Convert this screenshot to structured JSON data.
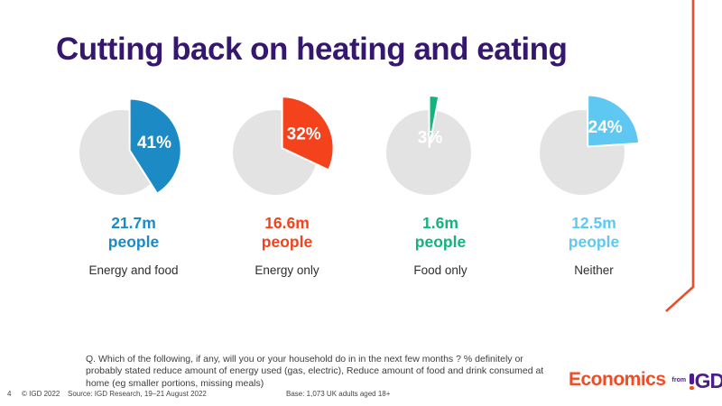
{
  "slide": {
    "title": "Cutting back on heating and eating",
    "footnote": "Q. Which of the following, if any, will you or your household do in in the next few months ? % definitely or probably stated reduce amount of energy used (gas, electric), Reduce amount of food and drink consumed at home (eg smaller portions, missing meals)",
    "footer": {
      "page_number": "4",
      "copyright": "© IGD 2022",
      "source": "Source: IGD Research, 19–21 August 2022",
      "base": "Base: 1,073  UK adults aged 18+"
    },
    "logo": {
      "brand": "Economics",
      "from_word": "from",
      "org_letters": "GD"
    }
  },
  "chart_data": {
    "type": "pie",
    "title": "Cutting back on heating and eating",
    "legend_position": "none",
    "remainder_color": "#e3e3e3",
    "charts": [
      {
        "label": "Energy and food",
        "percent": 41,
        "percent_label": "41%",
        "people": "21.7m",
        "people_word": "people",
        "color": "#1b8ac5"
      },
      {
        "label": "Energy only",
        "percent": 32,
        "percent_label": "32%",
        "people": "16.6m",
        "people_word": "people",
        "color": "#f4421d"
      },
      {
        "label": "Food only",
        "percent": 3,
        "percent_label": "3%",
        "people": "1.6m",
        "people_word": "people",
        "color": "#12b47e"
      },
      {
        "label": "Neither",
        "percent": 24,
        "percent_label": "24%",
        "people": "12.5m",
        "people_word": "people",
        "color": "#5ec8f2"
      }
    ]
  },
  "colors": {
    "title": "#35186e",
    "accent_line": "#ea4f2d",
    "brand_orange": "#f04c24",
    "brand_purple": "#4a1c8c"
  }
}
